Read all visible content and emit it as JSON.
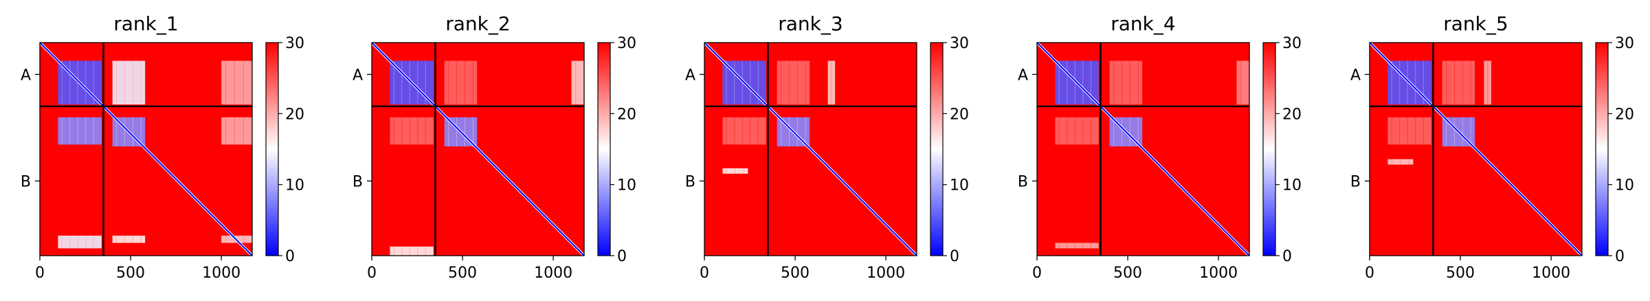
{
  "chart_data": [
    {
      "type": "heatmap",
      "title": "rank_1",
      "x_range": [
        0,
        1170
      ],
      "x_ticks": [
        "0",
        "500",
        "1000"
      ],
      "x_tick_values": [
        0,
        500,
        1000
      ],
      "y_ticks": [
        "A",
        "B"
      ],
      "chain_boundary": 350,
      "colorbar": {
        "min": 0,
        "max": 30,
        "ticks": [
          "0",
          "10",
          "20",
          "30"
        ],
        "tick_values": [
          0,
          10,
          20,
          30
        ],
        "colors": [
          "#0000ff",
          "#ffffff",
          "#ff0000"
        ]
      },
      "low_blocks": [
        {
          "x": [
            100,
            340
          ],
          "y": [
            100,
            340
          ],
          "v": 5
        },
        {
          "x": [
            400,
            580
          ],
          "y": [
            100,
            340
          ],
          "v": 14
        },
        {
          "x": [
            1000,
            1170
          ],
          "y": [
            100,
            340
          ],
          "v": 20
        },
        {
          "x": [
            100,
            340
          ],
          "y": [
            410,
            560
          ],
          "v": 8
        },
        {
          "x": [
            400,
            580
          ],
          "y": [
            410,
            570
          ],
          "v": 8
        },
        {
          "x": [
            1000,
            1170
          ],
          "y": [
            410,
            560
          ],
          "v": 20
        },
        {
          "x": [
            100,
            340
          ],
          "y": [
            1060,
            1130
          ],
          "v": 14
        },
        {
          "x": [
            400,
            580
          ],
          "y": [
            1060,
            1100
          ],
          "v": 16
        },
        {
          "x": [
            1000,
            1170
          ],
          "y": [
            1060,
            1100
          ],
          "v": 18
        }
      ]
    },
    {
      "type": "heatmap",
      "title": "rank_2",
      "x_range": [
        0,
        1170
      ],
      "x_ticks": [
        "0",
        "500",
        "1000"
      ],
      "x_tick_values": [
        0,
        500,
        1000
      ],
      "y_ticks": [
        "A",
        "B"
      ],
      "chain_boundary": 350,
      "colorbar": {
        "min": 0,
        "max": 30,
        "ticks": [
          "0",
          "10",
          "20",
          "30"
        ],
        "tick_values": [
          0,
          10,
          20,
          30
        ],
        "colors": [
          "#0000ff",
          "#ffffff",
          "#ff0000"
        ]
      },
      "low_blocks": [
        {
          "x": [
            100,
            340
          ],
          "y": [
            100,
            340
          ],
          "v": 5
        },
        {
          "x": [
            400,
            580
          ],
          "y": [
            100,
            340
          ],
          "v": 24
        },
        {
          "x": [
            1100,
            1170
          ],
          "y": [
            100,
            340
          ],
          "v": 18
        },
        {
          "x": [
            100,
            340
          ],
          "y": [
            410,
            560
          ],
          "v": 24
        },
        {
          "x": [
            400,
            580
          ],
          "y": [
            410,
            570
          ],
          "v": 8
        },
        {
          "x": [
            100,
            340
          ],
          "y": [
            1120,
            1170
          ],
          "v": 16
        }
      ]
    },
    {
      "type": "heatmap",
      "title": "rank_3",
      "x_range": [
        0,
        1170
      ],
      "x_ticks": [
        "0",
        "500",
        "1000"
      ],
      "x_tick_values": [
        0,
        500,
        1000
      ],
      "y_ticks": [
        "A",
        "B"
      ],
      "chain_boundary": 350,
      "colorbar": {
        "min": 0,
        "max": 30,
        "ticks": [
          "0",
          "10",
          "20",
          "30"
        ],
        "tick_values": [
          0,
          10,
          20,
          30
        ],
        "colors": [
          "#0000ff",
          "#ffffff",
          "#ff0000"
        ]
      },
      "low_blocks": [
        {
          "x": [
            100,
            340
          ],
          "y": [
            100,
            340
          ],
          "v": 5
        },
        {
          "x": [
            400,
            580
          ],
          "y": [
            100,
            340
          ],
          "v": 24
        },
        {
          "x": [
            680,
            720
          ],
          "y": [
            100,
            340
          ],
          "v": 18
        },
        {
          "x": [
            100,
            340
          ],
          "y": [
            410,
            560
          ],
          "v": 24
        },
        {
          "x": [
            400,
            580
          ],
          "y": [
            410,
            570
          ],
          "v": 8
        },
        {
          "x": [
            100,
            240
          ],
          "y": [
            690,
            720
          ],
          "v": 16
        }
      ]
    },
    {
      "type": "heatmap",
      "title": "rank_4",
      "x_range": [
        0,
        1170
      ],
      "x_ticks": [
        "0",
        "500",
        "1000"
      ],
      "x_tick_values": [
        0,
        500,
        1000
      ],
      "y_ticks": [
        "A",
        "B"
      ],
      "chain_boundary": 350,
      "colorbar": {
        "min": 0,
        "max": 30,
        "ticks": [
          "0",
          "10",
          "20",
          "30"
        ],
        "tick_values": [
          0,
          10,
          20,
          30
        ],
        "colors": [
          "#0000ff",
          "#ffffff",
          "#ff0000"
        ]
      },
      "low_blocks": [
        {
          "x": [
            100,
            340
          ],
          "y": [
            100,
            340
          ],
          "v": 5
        },
        {
          "x": [
            400,
            580
          ],
          "y": [
            100,
            340
          ],
          "v": 24
        },
        {
          "x": [
            1100,
            1170
          ],
          "y": [
            100,
            340
          ],
          "v": 22
        },
        {
          "x": [
            100,
            340
          ],
          "y": [
            410,
            560
          ],
          "v": 24
        },
        {
          "x": [
            400,
            580
          ],
          "y": [
            410,
            570
          ],
          "v": 8
        },
        {
          "x": [
            100,
            340
          ],
          "y": [
            1100,
            1130
          ],
          "v": 20
        }
      ]
    },
    {
      "type": "heatmap",
      "title": "rank_5",
      "x_range": [
        0,
        1170
      ],
      "x_ticks": [
        "0",
        "500",
        "1000"
      ],
      "x_tick_values": [
        0,
        500,
        1000
      ],
      "y_ticks": [
        "A",
        "B"
      ],
      "chain_boundary": 350,
      "colorbar": {
        "min": 0,
        "max": 30,
        "ticks": [
          "0",
          "10",
          "20",
          "30"
        ],
        "tick_values": [
          0,
          10,
          20,
          30
        ],
        "colors": [
          "#0000ff",
          "#ffffff",
          "#ff0000"
        ]
      },
      "low_blocks": [
        {
          "x": [
            100,
            340
          ],
          "y": [
            100,
            340
          ],
          "v": 5
        },
        {
          "x": [
            400,
            580
          ],
          "y": [
            100,
            340
          ],
          "v": 24
        },
        {
          "x": [
            630,
            670
          ],
          "y": [
            100,
            340
          ],
          "v": 20
        },
        {
          "x": [
            100,
            340
          ],
          "y": [
            410,
            560
          ],
          "v": 24
        },
        {
          "x": [
            400,
            580
          ],
          "y": [
            410,
            570
          ],
          "v": 8
        },
        {
          "x": [
            100,
            240
          ],
          "y": [
            640,
            670
          ],
          "v": 18
        }
      ]
    }
  ]
}
